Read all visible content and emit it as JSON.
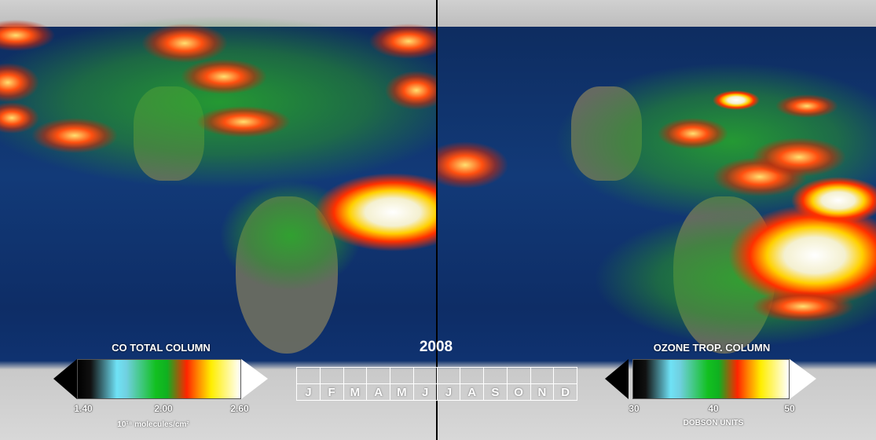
{
  "year": "2008",
  "left_panel": {
    "title": "CO TOTAL COLUMN",
    "ticks": [
      "1.40",
      "2.00",
      "2.60"
    ],
    "unit": "10¹⁸ molecules/cm²"
  },
  "right_panel": {
    "title": "OZONE TROP. COLUMN",
    "ticks": [
      "30",
      "40",
      "50"
    ],
    "unit": "DOBSON UNITS"
  },
  "timeline": {
    "months": [
      "J",
      "F",
      "M",
      "A",
      "M",
      "J",
      "J",
      "A",
      "S",
      "O",
      "N",
      "D"
    ]
  },
  "colors": {
    "ocean": "#123a78",
    "ice": "#d0d0d0",
    "low": "#000000",
    "mid_low": "#6fe2f6",
    "mid": "#12c020",
    "mid_high": "#ff2400",
    "high_yellow": "#ffee00",
    "max": "#ffffff"
  }
}
